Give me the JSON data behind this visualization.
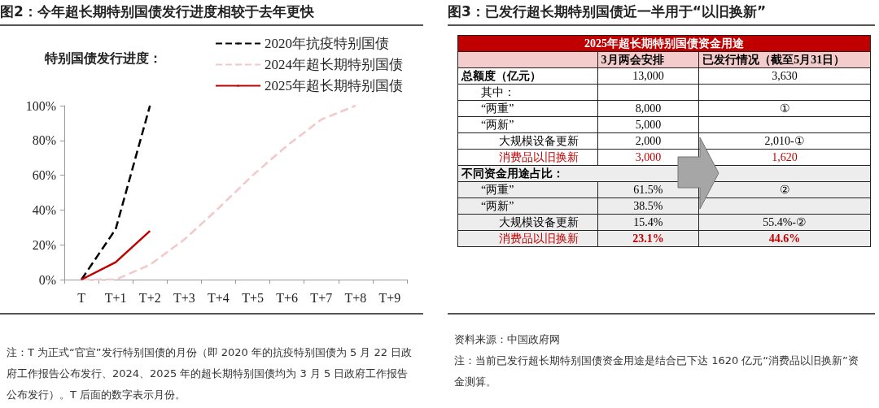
{
  "chart_data": [
    {
      "type": "line",
      "title": "图2：今年超长期特别国债发行进度相较于去年更快",
      "legend_title": "特别国债发行进度：",
      "categories": [
        "T",
        "T+1",
        "T+2",
        "T+3",
        "T+4",
        "T+5",
        "T+6",
        "T+7",
        "T+8",
        "T+9"
      ],
      "series": [
        {
          "name": "2020年抗疫特别国债",
          "color": "#000000",
          "line_style": "dashed",
          "values": [
            0,
            29,
            100,
            null,
            null,
            null,
            null,
            null,
            null,
            null
          ]
        },
        {
          "name": "2024年超长期特别国债",
          "color": "#f2c8c8",
          "line_style": "dashed",
          "values": [
            0,
            0,
            8.5,
            23,
            41,
            60,
            77,
            92,
            100,
            null
          ]
        },
        {
          "name": "2025年超长期特别国债",
          "color": "#c00000",
          "line_style": "solid",
          "values": [
            0,
            10,
            28,
            null,
            null,
            null,
            null,
            null,
            null,
            null
          ]
        }
      ],
      "ylim": [
        0,
        100
      ],
      "yticks": [
        {
          "value": 0,
          "label": "0%"
        },
        {
          "value": 20,
          "label": "20%"
        },
        {
          "value": 40,
          "label": "40%"
        },
        {
          "value": 60,
          "label": "60%"
        },
        {
          "value": 80,
          "label": "80%"
        },
        {
          "value": 100,
          "label": "100%"
        }
      ],
      "grid": false,
      "legend": "top right",
      "marker": "none",
      "annotations": [
        "注：T 为正式“官宣”发行特别国债的月份（即 2020 年的抗疫特别国债为 5 月 22 日政府工作报告公布发行、2024、2025 年的超长期特别国债均为 3 月 5 日政府工作报告公布发行）。T 后面的数字表示月份。"
      ]
    },
    {
      "type": "other",
      "title": "图3：已发行超长期特别国债近一半用于“以旧换新”",
      "subtitle": "2025年超长期特别国债资金用途",
      "categories": [
        null,
        "3月两会安排",
        "已发行情况（截至5月31日）"
      ],
      "y_categories": [
        "总额度（亿元）",
        "其中：",
        "“两重”",
        "“两新”",
        "大规模设备更新",
        "消费品以旧换新",
        "不同资金用途占比：",
        "“两重”",
        "“两新”",
        "大规模设备更新",
        "消费品以旧换新"
      ],
      "cell_labels": [
        [
          "13,000",
          "3,630"
        ],
        [
          null,
          null
        ],
        [
          "8,000",
          "①"
        ],
        [
          "5,000",
          null
        ],
        [
          "2,000",
          "2,010-①"
        ],
        [
          "3,000",
          "1,620"
        ],
        [
          null,
          null
        ],
        [
          "61.5%",
          "②"
        ],
        [
          "38.5%",
          null
        ],
        [
          "15.4%",
          "55.4%-②"
        ],
        [
          "23.1%",
          "44.6%"
        ]
      ],
      "annotations": [
        "资料来源：中国政府网",
        "注：当前已发行超长期特别国债资金用途是结合已下达 1620 亿元“消费品以旧换新”资金测算。"
      ]
    }
  ]
}
